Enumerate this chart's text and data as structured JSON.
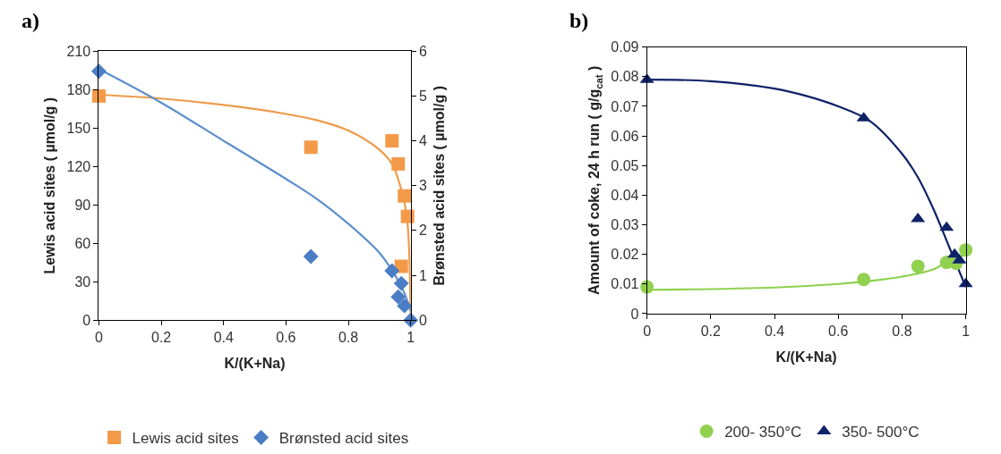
{
  "chart_data": [
    {
      "type": "scatter",
      "title": "a)",
      "xlabel": "K/(K+Na)",
      "ylabel": "Lewis acid sites ( µmol/g )",
      "y2label": "Brønsted acid sites ( µmol/g )",
      "xlim": [
        0,
        1
      ],
      "xticks": [
        0,
        0.2,
        0.4,
        0.6,
        0.8,
        1
      ],
      "ylim": [
        0,
        210
      ],
      "yticks": [
        0,
        30,
        60,
        90,
        120,
        150,
        180,
        210
      ],
      "y2lim": [
        0,
        6
      ],
      "y2ticks": [
        0,
        1,
        2,
        3,
        4,
        5,
        6
      ],
      "legend": "bottom",
      "series": [
        {
          "type": "line",
          "color": "#ed9b4a",
          "x": [
            0,
            0.2,
            0.4,
            0.6,
            0.7,
            0.8,
            0.9,
            0.94,
            0.96,
            0.98,
            0.99,
            0.995,
            1.0
          ],
          "values": [
            176,
            173,
            168,
            161,
            156,
            148,
            133,
            122,
            110,
            92,
            75,
            55,
            0
          ],
          "marker": "none"
        },
        {
          "type": "line",
          "color": "#5b8fcc",
          "axis": "y2",
          "x": [
            0,
            0.2,
            0.4,
            0.6,
            0.7,
            0.8,
            0.9,
            0.95,
            0.98,
            1.0
          ],
          "values": [
            5.6,
            4.85,
            4.0,
            3.15,
            2.7,
            2.15,
            1.5,
            1.0,
            0.6,
            0.2
          ],
          "marker": "none"
        },
        {
          "name": "Lewis acid sites",
          "color": "#f39a49",
          "marker": "square",
          "x": [
            0,
            0.68,
            0.94,
            0.96,
            0.98,
            0.99,
            0.97
          ],
          "values": [
            175,
            135,
            140,
            122,
            97,
            81,
            42
          ]
        },
        {
          "name": "Brønsted acid sites",
          "color": "#4a7dc4",
          "marker": "diamond",
          "axis": "y2",
          "x": [
            0,
            0.68,
            0.94,
            0.96,
            0.97,
            0.98,
            1.0
          ],
          "values": [
            5.55,
            1.42,
            1.1,
            0.52,
            0.82,
            0.32,
            0
          ]
        }
      ]
    },
    {
      "type": "scatter",
      "title": "b)",
      "xlabel": "K/(K+Na)",
      "ylabel": "Amount of coke, 24 h run ( g/g$_{cat}$ )",
      "xlim": [
        0,
        1
      ],
      "xticks": [
        0,
        0.2,
        0.4,
        0.6,
        0.8,
        1
      ],
      "ylim": [
        0,
        0.09
      ],
      "yticks": [
        0,
        0.01,
        0.02,
        0.03,
        0.04,
        0.05,
        0.06,
        0.07,
        0.08,
        0.09
      ],
      "legend": "bottom",
      "series": [
        {
          "type": "line",
          "color": "#0f2167",
          "x": [
            0,
            0.2,
            0.4,
            0.5,
            0.6,
            0.7,
            0.8,
            0.85,
            0.9,
            0.95,
            1.0
          ],
          "values": [
            0.079,
            0.0785,
            0.076,
            0.0735,
            0.07,
            0.065,
            0.054,
            0.046,
            0.035,
            0.022,
            0.009
          ],
          "marker": "none"
        },
        {
          "type": "line",
          "color": "#8dd24f",
          "x": [
            0,
            0.4,
            0.6,
            0.7,
            0.8,
            0.9,
            0.95,
            1.0
          ],
          "values": [
            0.008,
            0.0088,
            0.01,
            0.011,
            0.0125,
            0.015,
            0.018,
            0.02
          ],
          "marker": "none"
        },
        {
          "name": "200- 350°C",
          "color": "#92d050",
          "marker": "circle",
          "x": [
            0,
            0.68,
            0.85,
            0.94,
            0.97,
            1.0
          ],
          "values": [
            0.009,
            0.0115,
            0.016,
            0.0173,
            0.017,
            0.0215
          ]
        },
        {
          "name": "350- 500°C",
          "color": "#0f2167",
          "marker": "triangle",
          "x": [
            0,
            0.68,
            0.85,
            0.94,
            0.965,
            0.98,
            1.0
          ],
          "values": [
            0.079,
            0.066,
            0.032,
            0.029,
            0.02,
            0.018,
            0.01
          ]
        }
      ]
    }
  ]
}
